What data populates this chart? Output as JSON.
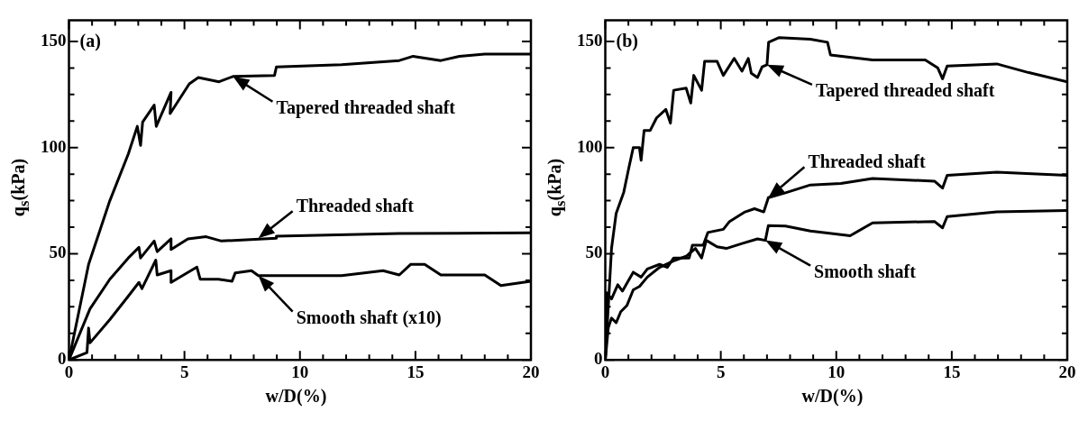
{
  "chart_data": [
    {
      "type": "line",
      "xlabel": "w/D(%)",
      "ylabel": "q$_{s}$(kPa)",
      "marker": "none",
      "line_style": "solid",
      "xlim": [
        0,
        20
      ],
      "ylim": [
        0,
        160
      ],
      "xticks": [
        0,
        {
          "value": 1,
          "label": null
        },
        {
          "value": 2,
          "label": null
        },
        {
          "value": 3,
          "label": null
        },
        {
          "value": 4,
          "label": null
        },
        5,
        {
          "value": 6,
          "label": null
        },
        {
          "value": 7,
          "label": null
        },
        {
          "value": 8,
          "label": null
        },
        {
          "value": 9,
          "label": null
        },
        10,
        {
          "value": 11,
          "label": null
        },
        {
          "value": 12,
          "label": null
        },
        {
          "value": 13,
          "label": null
        },
        {
          "value": 14,
          "label": null
        },
        15,
        {
          "value": 16,
          "label": null
        },
        {
          "value": 17,
          "label": null
        },
        {
          "value": 18,
          "label": null
        },
        {
          "value": 19,
          "label": null
        },
        20
      ],
      "yticks": [
        0,
        {
          "value": 12.5,
          "label": null
        },
        {
          "value": 25,
          "label": null
        },
        {
          "value": 37.5,
          "label": null
        },
        50,
        {
          "value": 62.5,
          "label": null
        },
        {
          "value": 75,
          "label": null
        },
        {
          "value": 87.5,
          "label": null
        },
        100,
        {
          "value": 112.5,
          "label": null
        },
        {
          "value": 125,
          "label": null
        },
        {
          "value": 137.5,
          "label": null
        },
        150
      ],
      "series": [
        {
          "color": "#000000",
          "x": [
            0,
            0.85,
            1.77,
            2.57,
            2.96,
            3.1,
            3.19,
            3.69,
            3.78,
            4.42,
            4.38,
            5.21,
            5.6,
            6.5,
            7.1,
            8.9,
            8.98,
            11.8,
            14.3,
            14.9,
            16.1,
            16.9,
            18,
            20
          ],
          "values": [
            0,
            45,
            75,
            97,
            110,
            101,
            112,
            120,
            110,
            126,
            116,
            130,
            133,
            131,
            133.5,
            134,
            138,
            139,
            141,
            143,
            141,
            143,
            144,
            144
          ]
        },
        {
          "color": "#000000",
          "x": [
            0,
            0.91,
            1.77,
            2.57,
            3.03,
            3.1,
            3.69,
            3.82,
            4.42,
            4.42,
            5.15,
            5.94,
            6.6,
            8.98,
            8.98,
            14.3,
            20
          ],
          "values": [
            0,
            24,
            38,
            48,
            53,
            48,
            56,
            51,
            57,
            52,
            57,
            58,
            56,
            57.3,
            58.3,
            59.5,
            59.8
          ]
        },
        {
          "color": "#000000",
          "x": [
            0,
            0.78,
            0.85,
            0.91,
            1.77,
            2.57,
            3.03,
            3.16,
            3.76,
            3.82,
            4.42,
            4.42,
            5.54,
            5.68,
            6.47,
            7.06,
            7.2,
            7.9,
            8.2,
            11.8,
            13.6,
            14.3,
            14.8,
            15.4,
            16.1,
            18,
            18.7,
            20
          ],
          "values": [
            0,
            3.4,
            15,
            8,
            19,
            30,
            36.5,
            33.6,
            47,
            40,
            42,
            36.5,
            43.7,
            38,
            38,
            37,
            41,
            42,
            39.7,
            39.7,
            42,
            40,
            45,
            45,
            40,
            40,
            35,
            37
          ]
        }
      ],
      "annotations": [
        "(a)",
        {
          "text": "Tapered threaded shaft",
          "x": 7.1,
          "y": 133.5
        },
        {
          "text": "Threaded shaft",
          "x": 8.2,
          "y": 57.3
        },
        {
          "text": "Smooth shaft (x10)",
          "x": 8.2,
          "y": 39.7
        }
      ]
    },
    {
      "type": "line",
      "xlabel": "w/D(%)",
      "ylabel": "q$_{s}$(kPa)",
      "marker": "none",
      "line_style": "solid",
      "xlim": [
        0,
        20
      ],
      "ylim": [
        0,
        160
      ],
      "xticks": [
        0,
        {
          "value": 1,
          "label": null
        },
        {
          "value": 2,
          "label": null
        },
        {
          "value": 3,
          "label": null
        },
        {
          "value": 4,
          "label": null
        },
        5,
        {
          "value": 6,
          "label": null
        },
        {
          "value": 7,
          "label": null
        },
        {
          "value": 8,
          "label": null
        },
        {
          "value": 9,
          "label": null
        },
        10,
        {
          "value": 11,
          "label": null
        },
        {
          "value": 12,
          "label": null
        },
        {
          "value": 13,
          "label": null
        },
        {
          "value": 14,
          "label": null
        },
        15,
        {
          "value": 16,
          "label": null
        },
        {
          "value": 17,
          "label": null
        },
        {
          "value": 18,
          "label": null
        },
        {
          "value": 19,
          "label": null
        },
        20
      ],
      "yticks": [
        0,
        {
          "value": 12.5,
          "label": null
        },
        {
          "value": 25,
          "label": null
        },
        {
          "value": 37.5,
          "label": null
        },
        50,
        {
          "value": 62.5,
          "label": null
        },
        {
          "value": 75,
          "label": null
        },
        {
          "value": 87.5,
          "label": null
        },
        100,
        {
          "value": 112.5,
          "label": null
        },
        {
          "value": 125,
          "label": null
        },
        {
          "value": 137.5,
          "label": null
        },
        150
      ],
      "series": [
        {
          "color": "#000000",
          "x": [
            0,
            0.27,
            0.47,
            0.8,
            1.01,
            1.21,
            1.48,
            1.55,
            1.68,
            1.94,
            2.22,
            2.62,
            2.82,
            2.96,
            3.5,
            3.7,
            3.83,
            4.17,
            4.3,
            4.84,
            5.11,
            5.58,
            5.92,
            6.19,
            6.32,
            6.59,
            6.79,
            7.0,
            7.07,
            7.53,
            8.88,
            9.62,
            9.75,
            11.57,
            13.85,
            14.39,
            14.6,
            14.8,
            16.95,
            18.3,
            20
          ],
          "values": [
            0,
            52.5,
            69,
            79,
            90,
            100,
            100,
            94,
            108,
            108,
            114,
            118,
            111.5,
            127,
            128,
            121,
            134,
            127,
            140.6,
            140.6,
            134,
            142,
            136,
            142,
            135,
            133,
            138,
            139,
            149.6,
            151.8,
            151,
            149.6,
            143.6,
            141.3,
            141.3,
            137.6,
            132.4,
            138.4,
            139.4,
            135.4,
            131
          ]
        },
        {
          "color": "#000000",
          "x": [
            0,
            0.07,
            0.27,
            0.54,
            0.74,
            1.21,
            1.55,
            1.82,
            2.35,
            2.69,
            2.96,
            3.63,
            3.77,
            4.24,
            4.44,
            5.11,
            5.38,
            6.05,
            6.46,
            6.86,
            7.06,
            7.8,
            8.88,
            10.2,
            11.57,
            14.25,
            14.6,
            14.8,
            16.95,
            20
          ],
          "values": [
            0,
            31.6,
            28.7,
            35.4,
            32.4,
            41.3,
            39,
            42.8,
            45,
            43.6,
            48,
            48,
            54,
            54,
            60,
            61.5,
            65.2,
            69.7,
            71.2,
            69.7,
            76.4,
            78.7,
            82.4,
            83.1,
            85.4,
            84.2,
            80.9,
            86.9,
            88.4,
            86.9
          ]
        },
        {
          "color": "#000000",
          "x": [
            0,
            0.13,
            0.27,
            0.47,
            0.67,
            0.94,
            1.21,
            1.48,
            1.82,
            2.35,
            2.96,
            3.5,
            3.9,
            4.17,
            4.37,
            4.84,
            5.24,
            5.92,
            6.59,
            6.93,
            7.06,
            7.8,
            8.88,
            9.95,
            10.6,
            11.57,
            14.25,
            14.6,
            14.8,
            16.95,
            20
          ],
          "values": [
            0,
            15.2,
            19.7,
            17.5,
            22.7,
            25.7,
            33,
            34.6,
            39,
            43.6,
            46.6,
            48.8,
            52.5,
            48,
            56.3,
            53.3,
            52.5,
            54.8,
            57,
            56.3,
            63.3,
            63,
            60.7,
            59.3,
            58.5,
            64.5,
            65.2,
            62.2,
            67.5,
            69.7,
            70.4
          ]
        }
      ],
      "annotations": [
        "(b)",
        {
          "text": "Tapered threaded shaft",
          "x": 7.0,
          "y": 139
        },
        {
          "text": "Threaded shaft",
          "x": 7.06,
          "y": 76.4
        },
        {
          "text": "Smooth shaft",
          "x": 6.93,
          "y": 56.3
        }
      ]
    }
  ]
}
